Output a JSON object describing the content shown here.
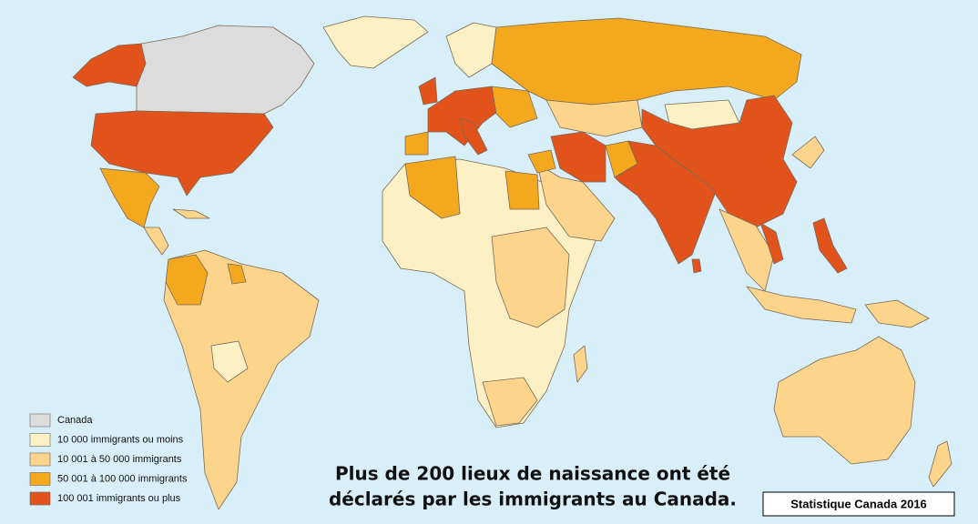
{
  "legend": [
    {
      "label": "Canada",
      "color": "#dcdcdc"
    },
    {
      "label": "10 000 immigrants ou moins",
      "color": "#fdf0c4"
    },
    {
      "label": "10 001 à 50 000 immigrants",
      "color": "#fcd48c"
    },
    {
      "label": "50 001 à 100 000 immigrants",
      "color": "#f4a81e"
    },
    {
      "label": "100 001 immigrants ou plus",
      "color": "#e2531c"
    }
  ],
  "caption": [
    "Plus de 200 lieux de naissance ont été",
    "déclarés par les immigrants au Canada."
  ],
  "source": "Statistique Canada 2016"
}
